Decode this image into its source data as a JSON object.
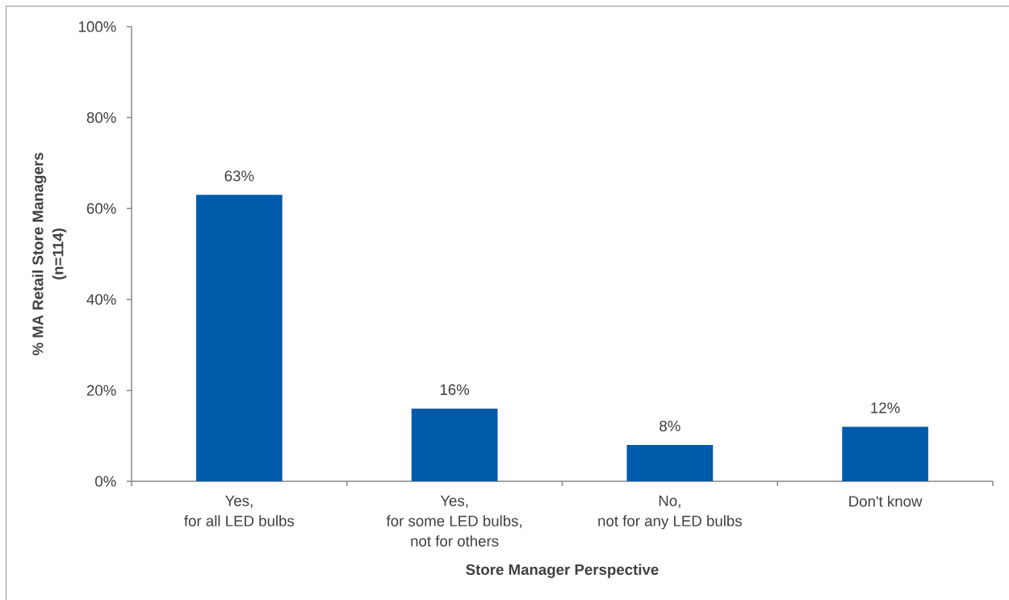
{
  "chart_data": {
    "type": "bar",
    "xlabel": "Store Manager Perspective",
    "ylabel": "% MA Retail Store Managers\n(n=114)",
    "categories": [
      "Yes,\nfor all LED bulbs",
      "Yes,\nfor some LED bulbs,\nnot for others",
      "No,\nnot for any LED bulbs",
      "Don't know"
    ],
    "values": [
      63,
      16,
      8,
      12
    ],
    "color": "#005bab",
    "value_labels": [
      "63%",
      "16%",
      "8%",
      "12%"
    ],
    "ylim": [
      0,
      100
    ],
    "yticks": [
      {
        "value": 0,
        "label": "0%"
      },
      {
        "value": 20,
        "label": "20%"
      },
      {
        "value": 40,
        "label": "40%"
      },
      {
        "value": 60,
        "label": "60%"
      },
      {
        "value": 80,
        "label": "80%"
      },
      {
        "value": 100,
        "label": "100%"
      }
    ]
  }
}
